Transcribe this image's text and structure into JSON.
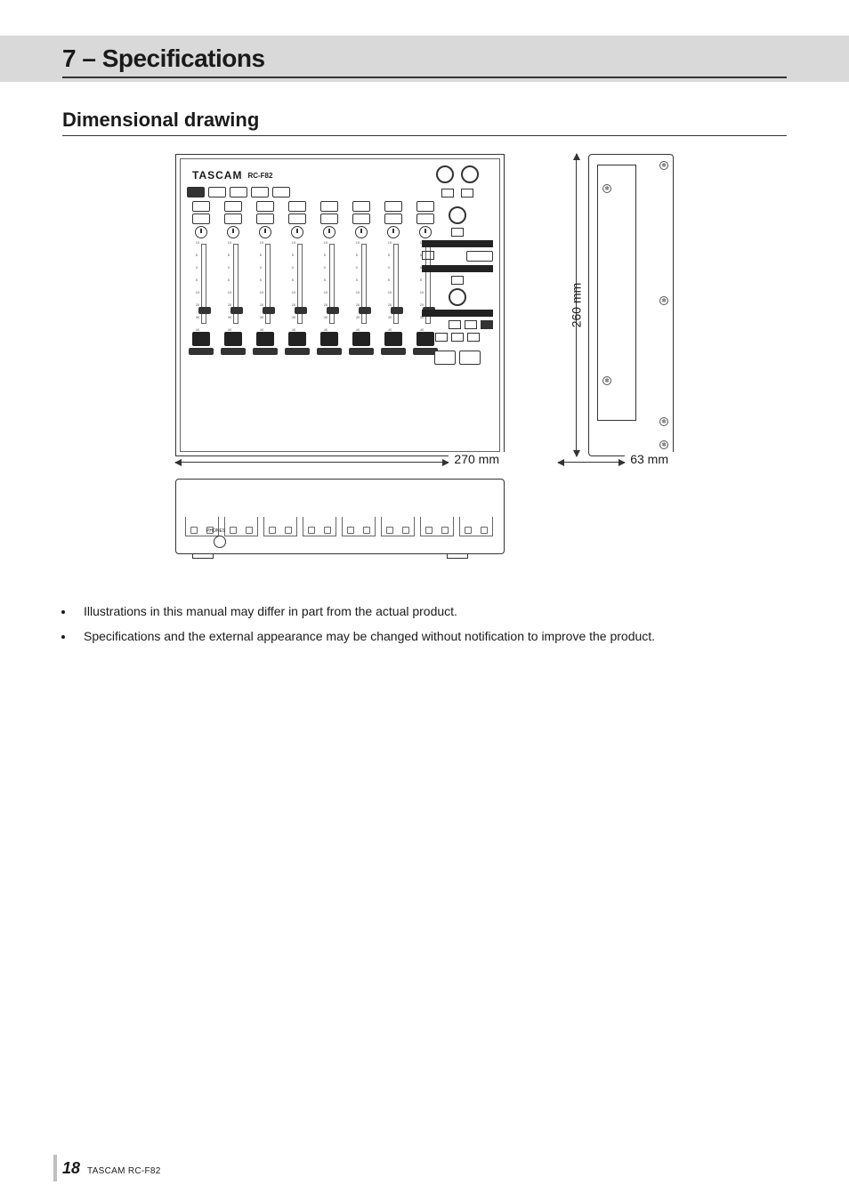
{
  "header": {
    "title": "7 – Specifications"
  },
  "section_heading": "Dimensional drawing",
  "device": {
    "brand": "TASCAM",
    "model": "RC-F82",
    "phones_label": "PHONES"
  },
  "dimensions": {
    "width_label": "270 mm",
    "depth_label": "260 mm",
    "height_label": "63 mm"
  },
  "notes": [
    "Illustrations in this manual may differ in part from the actual product.",
    "Specifications and the external appearance may be changed without notification to improve the product."
  ],
  "footer": {
    "page": "18",
    "product": "TASCAM RC-F82"
  },
  "styling": {
    "page_bg": "#ffffff",
    "header_band_bg": "#d9d9d9",
    "text_color": "#1a1a1a",
    "rule_color": "#333333",
    "footer_bar_color": "#bfbfbf",
    "page_num_fontsize": 18,
    "body_fontsize": 14,
    "heading_fontsize": 22,
    "title_fontsize": 28,
    "device_top_size": [
      370,
      340
    ],
    "device_side_size": [
      130,
      340
    ],
    "device_front_size": [
      370,
      85
    ],
    "channel_count": 8
  }
}
